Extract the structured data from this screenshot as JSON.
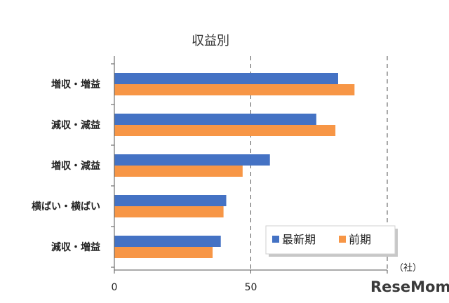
{
  "chart_data": {
    "type": "bar",
    "orientation": "horizontal",
    "title": "収益別",
    "categories": [
      "増収・増益",
      "減収・減益",
      "増収・減益",
      "横ばい・横ばい",
      "減収・増益"
    ],
    "series": [
      {
        "name": "最新期",
        "color": "#4472c4",
        "values": [
          82,
          74,
          57,
          41,
          39
        ]
      },
      {
        "name": "前期",
        "color": "#f79646",
        "values": [
          88,
          81,
          47,
          40,
          36
        ]
      }
    ],
    "xlim": [
      0,
      100
    ],
    "xticks": [
      "0",
      "50"
    ],
    "unit_label": "（社）",
    "grid": "dashed vertical at 50 and 100",
    "legend_position": "bottom-right"
  },
  "watermark": "ReseMom"
}
